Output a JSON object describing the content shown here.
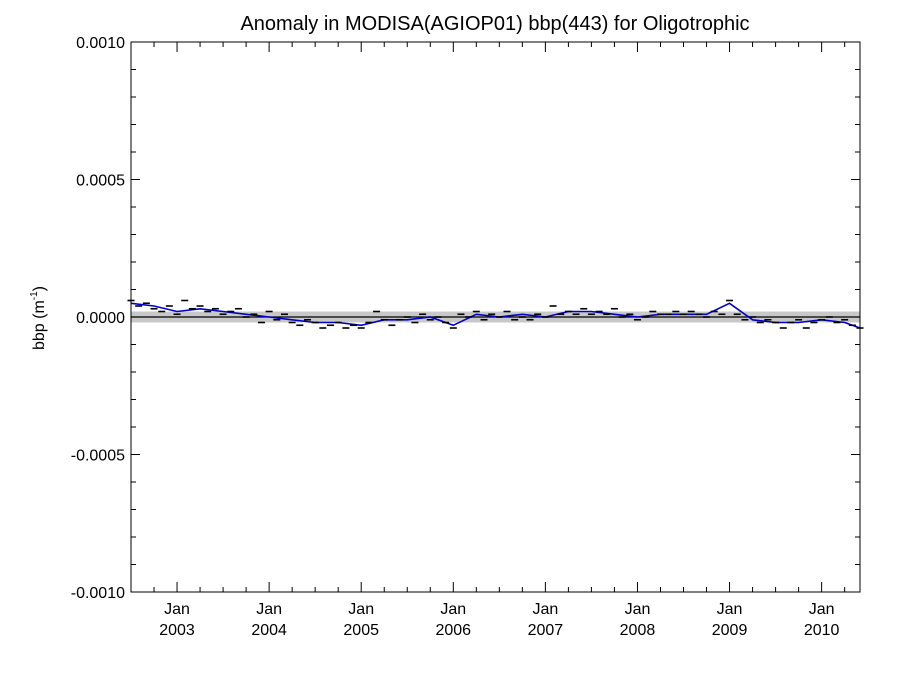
{
  "chart_data": {
    "type": "line",
    "title": "Anomaly in MODISA(AGIOP01) bbp(443) for Oligotrophic",
    "ylabel": "bbp (m",
    "ylabel_sup": "-1",
    "ylabel_close": ")",
    "xlabel": "",
    "xlim": [
      "2002-07",
      "2010-06"
    ],
    "ylim": [
      -0.001,
      0.001
    ],
    "y_ticks": [
      {
        "value": 0.001,
        "label": "0.0010"
      },
      {
        "value": 0.0005,
        "label": "0.0005"
      },
      {
        "value": 0.0,
        "label": "0.0000"
      },
      {
        "value": -0.0005,
        "label": "-0.0005"
      },
      {
        "value": -0.001,
        "label": "-0.0010"
      }
    ],
    "x_ticks": [
      {
        "date": "2003-01",
        "month": "Jan",
        "year": "2003"
      },
      {
        "date": "2004-01",
        "month": "Jan",
        "year": "2004"
      },
      {
        "date": "2005-01",
        "month": "Jan",
        "year": "2005"
      },
      {
        "date": "2006-01",
        "month": "Jan",
        "year": "2006"
      },
      {
        "date": "2007-01",
        "month": "Jan",
        "year": "2007"
      },
      {
        "date": "2008-01",
        "month": "Jan",
        "year": "2008"
      },
      {
        "date": "2009-01",
        "month": "Jan",
        "year": "2009"
      },
      {
        "date": "2010-01",
        "month": "Jan",
        "year": "2010"
      }
    ],
    "reference_line": 0.0,
    "band": [
      -2e-05,
      2e-05
    ],
    "band_color": "#c8c8c8",
    "line_color": "#0000cc",
    "marker_color": "#000000",
    "series": [
      {
        "style": "line",
        "x": [
          "2002-07",
          "2002-10",
          "2003-01",
          "2003-04",
          "2003-07",
          "2003-10",
          "2004-01",
          "2004-04",
          "2004-07",
          "2004-10",
          "2005-01",
          "2005-04",
          "2005-07",
          "2005-10",
          "2006-01",
          "2006-04",
          "2006-07",
          "2006-10",
          "2007-01",
          "2007-04",
          "2007-07",
          "2007-10",
          "2008-01",
          "2008-04",
          "2008-07",
          "2008-10",
          "2009-01",
          "2009-04",
          "2009-07",
          "2009-10",
          "2010-01",
          "2010-04",
          "2010-06"
        ],
        "y": [
          5e-05,
          4e-05,
          2e-05,
          3e-05,
          2e-05,
          1e-05,
          0.0,
          -1e-05,
          -2e-05,
          -2e-05,
          -3e-05,
          -1e-05,
          -1e-05,
          0.0,
          -3e-05,
          1e-05,
          0.0,
          1e-05,
          0.0,
          2e-05,
          2e-05,
          1e-05,
          0.0,
          1e-05,
          1e-05,
          1e-05,
          5e-05,
          -1e-05,
          -2e-05,
          -2e-05,
          -1e-05,
          -2e-05,
          -4e-05
        ]
      },
      {
        "style": "markers",
        "x": [
          "2002-07",
          "2002-08",
          "2002-09",
          "2002-10",
          "2002-11",
          "2002-12",
          "2003-01",
          "2003-02",
          "2003-03",
          "2003-04",
          "2003-05",
          "2003-06",
          "2003-07",
          "2003-08",
          "2003-09",
          "2003-10",
          "2003-11",
          "2003-12",
          "2004-01",
          "2004-02",
          "2004-03",
          "2004-04",
          "2004-05",
          "2004-06",
          "2004-07",
          "2004-08",
          "2004-09",
          "2004-10",
          "2004-11",
          "2004-12",
          "2005-01",
          "2005-02",
          "2005-03",
          "2005-04",
          "2005-05",
          "2005-06",
          "2005-07",
          "2005-08",
          "2005-09",
          "2005-10",
          "2005-11",
          "2005-12",
          "2006-01",
          "2006-02",
          "2006-03",
          "2006-04",
          "2006-05",
          "2006-06",
          "2006-07",
          "2006-08",
          "2006-09",
          "2006-10",
          "2006-11",
          "2006-12",
          "2007-01",
          "2007-02",
          "2007-03",
          "2007-04",
          "2007-05",
          "2007-06",
          "2007-07",
          "2007-08",
          "2007-09",
          "2007-10",
          "2007-11",
          "2007-12",
          "2008-01",
          "2008-02",
          "2008-03",
          "2008-04",
          "2008-05",
          "2008-06",
          "2008-07",
          "2008-08",
          "2008-09",
          "2008-10",
          "2008-11",
          "2008-12",
          "2009-01",
          "2009-02",
          "2009-03",
          "2009-04",
          "2009-05",
          "2009-06",
          "2009-07",
          "2009-08",
          "2009-09",
          "2009-10",
          "2009-11",
          "2009-12",
          "2010-01",
          "2010-02",
          "2010-03",
          "2010-04",
          "2010-05",
          "2010-06"
        ],
        "y": [
          6e-05,
          4e-05,
          5e-05,
          3e-05,
          2e-05,
          4e-05,
          1e-05,
          6e-05,
          3e-05,
          4e-05,
          2e-05,
          3e-05,
          1e-05,
          2e-05,
          3e-05,
          0.0,
          1e-05,
          -2e-05,
          2e-05,
          -1e-05,
          1e-05,
          -2e-05,
          -3e-05,
          -1e-05,
          -2e-05,
          -4e-05,
          -3e-05,
          -2e-05,
          -4e-05,
          -3e-05,
          -4e-05,
          -2e-05,
          2e-05,
          -1e-05,
          -3e-05,
          -1e-05,
          0.0,
          -2e-05,
          1e-05,
          -1e-05,
          0.0,
          -2e-05,
          -4e-05,
          1e-05,
          0.0,
          2e-05,
          -1e-05,
          1e-05,
          0.0,
          2e-05,
          -1e-05,
          0.0,
          -1e-05,
          1e-05,
          0.0,
          4e-05,
          1e-05,
          2e-05,
          1e-05,
          3e-05,
          1e-05,
          2e-05,
          1e-05,
          3e-05,
          0.0,
          1e-05,
          -1e-05,
          0.0,
          2e-05,
          1e-05,
          1e-05,
          2e-05,
          1e-05,
          2e-05,
          1e-05,
          0.0,
          2e-05,
          1e-05,
          6e-05,
          1e-05,
          -1e-05,
          0.0,
          -2e-05,
          -1e-05,
          -2e-05,
          -4e-05,
          -2e-05,
          -1e-05,
          -4e-05,
          -2e-05,
          -1e-05,
          0.0,
          -2e-05,
          -1e-05,
          -3e-05,
          -4e-05
        ]
      }
    ]
  }
}
